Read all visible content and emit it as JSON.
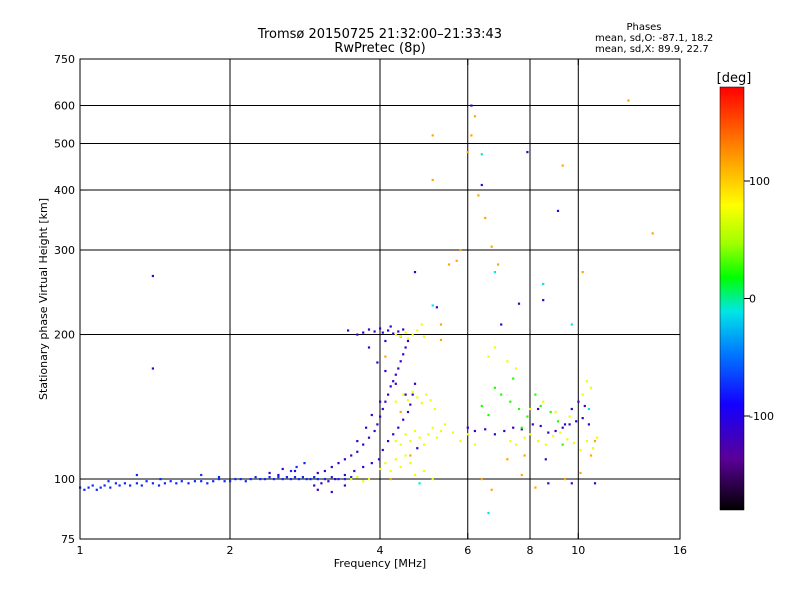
{
  "header": {
    "title": "Tromsø 20150725 21:32:00–21:33:43",
    "subtitle": "RwPretec (8p)"
  },
  "stats": {
    "title": "Phases",
    "line_o": "mean, sd,O: -87.1, 18.2",
    "line_x": "mean, sd,X:  89.9, 22.7"
  },
  "chart_data": {
    "type": "scatter",
    "xlabel": "Frequency [MHz]",
    "ylabel": "Stationary phase Virtual Height [km]",
    "xscale": "log",
    "yscale": "log",
    "xlim": [
      1,
      16
    ],
    "ylim": [
      75,
      750
    ],
    "x_ticks": [
      1,
      2,
      4,
      6,
      8,
      10,
      16
    ],
    "x_tick_labels": [
      "1",
      "2",
      "4",
      "6",
      "8",
      "10",
      "16"
    ],
    "y_ticks": [
      75,
      100,
      200,
      300,
      400,
      500,
      600,
      750
    ],
    "y_tick_labels": [
      "75",
      "100",
      "200",
      "300",
      "400",
      "500",
      "600",
      "750"
    ],
    "grid_x": [
      2,
      4,
      6,
      8,
      10
    ],
    "grid_y": [
      100,
      200,
      300,
      400,
      500,
      600
    ],
    "grid": true,
    "colorbar": {
      "label": "[deg]",
      "range": [
        -180,
        180
      ],
      "ticks": [
        100,
        0,
        -100
      ],
      "tick_labels": [
        "100",
        "0",
        "-100"
      ]
    },
    "series": [
      {
        "phase_deg": -75,
        "points": [
          [
            1.0,
            96
          ],
          [
            1.02,
            95
          ],
          [
            1.04,
            96
          ],
          [
            1.06,
            97
          ],
          [
            1.08,
            95
          ],
          [
            1.1,
            96
          ],
          [
            1.12,
            97
          ],
          [
            1.15,
            96
          ],
          [
            1.18,
            98
          ],
          [
            1.2,
            97
          ],
          [
            1.23,
            98
          ],
          [
            1.26,
            97
          ],
          [
            1.3,
            98
          ],
          [
            1.33,
            97
          ],
          [
            1.36,
            99
          ],
          [
            1.4,
            98
          ],
          [
            1.44,
            97
          ],
          [
            1.48,
            98
          ],
          [
            1.52,
            99
          ],
          [
            1.56,
            98
          ],
          [
            1.6,
            99
          ],
          [
            1.65,
            98
          ],
          [
            1.7,
            99
          ],
          [
            1.75,
            99
          ],
          [
            1.8,
            98
          ],
          [
            1.85,
            99
          ],
          [
            1.9,
            100
          ],
          [
            1.95,
            99
          ],
          [
            2.0,
            99
          ],
          [
            2.05,
            100
          ],
          [
            2.1,
            100
          ],
          [
            2.15,
            99
          ],
          [
            2.2,
            100
          ],
          [
            2.25,
            101
          ],
          [
            2.3,
            100
          ],
          [
            2.35,
            100
          ],
          [
            2.4,
            101
          ],
          [
            2.45,
            100
          ],
          [
            2.5,
            101
          ],
          [
            2.55,
            100
          ],
          [
            2.6,
            101
          ],
          [
            2.65,
            100
          ],
          [
            2.7,
            101
          ],
          [
            2.75,
            100
          ],
          [
            2.8,
            101
          ],
          [
            2.85,
            100
          ],
          [
            2.9,
            100
          ],
          [
            2.95,
            101
          ],
          [
            3.0,
            100
          ],
          [
            3.1,
            100
          ],
          [
            3.2,
            101
          ],
          [
            3.3,
            100
          ],
          [
            3.4,
            100
          ],
          [
            3.5,
            101
          ],
          [
            2.72,
            106
          ],
          [
            2.82,
            108
          ],
          [
            2.65,
            104
          ],
          [
            1.75,
            102
          ],
          [
            1.9,
            101
          ],
          [
            1.3,
            102
          ],
          [
            1.14,
            99
          ],
          [
            1.45,
            100
          ]
        ]
      },
      {
        "phase_deg": -115,
        "points": [
          [
            1.4,
            265
          ],
          [
            1.4,
            170
          ],
          [
            3.45,
            204
          ],
          [
            3.6,
            200
          ],
          [
            3.7,
            202
          ],
          [
            3.8,
            205
          ],
          [
            3.9,
            203
          ],
          [
            4.0,
            206
          ],
          [
            4.05,
            202
          ],
          [
            4.15,
            204
          ],
          [
            4.25,
            201
          ],
          [
            4.35,
            203
          ],
          [
            4.45,
            205
          ],
          [
            3.0,
            103
          ],
          [
            3.1,
            104
          ],
          [
            3.2,
            106
          ],
          [
            3.3,
            108
          ],
          [
            3.4,
            110
          ],
          [
            3.5,
            112
          ],
          [
            3.6,
            114
          ],
          [
            3.7,
            118
          ],
          [
            3.8,
            122
          ],
          [
            3.9,
            126
          ],
          [
            3.95,
            130
          ],
          [
            4.0,
            135
          ],
          [
            4.05,
            140
          ],
          [
            4.1,
            145
          ],
          [
            4.15,
            150
          ],
          [
            4.2,
            156
          ],
          [
            4.25,
            160
          ],
          [
            4.3,
            165
          ],
          [
            4.35,
            170
          ],
          [
            4.4,
            176
          ],
          [
            4.45,
            182
          ],
          [
            4.5,
            188
          ],
          [
            4.55,
            194
          ],
          [
            4.05,
            115
          ],
          [
            4.15,
            120
          ],
          [
            4.25,
            124
          ],
          [
            4.35,
            128
          ],
          [
            4.45,
            133
          ],
          [
            4.55,
            138
          ],
          [
            4.6,
            143
          ],
          [
            4.65,
            150
          ],
          [
            4.7,
            158
          ],
          [
            2.95,
            97
          ],
          [
            3.05,
            98
          ],
          [
            3.15,
            99
          ],
          [
            3.25,
            100
          ],
          [
            3.4,
            102
          ],
          [
            3.55,
            104
          ],
          [
            3.7,
            106
          ],
          [
            3.85,
            108
          ],
          [
            3.98,
            110
          ],
          [
            2.4,
            103
          ],
          [
            2.55,
            105
          ],
          [
            2.7,
            104
          ],
          [
            2.5,
            102
          ],
          [
            3.0,
            95
          ],
          [
            3.2,
            94
          ],
          [
            3.4,
            97
          ],
          [
            6.0,
            128
          ],
          [
            6.2,
            126
          ],
          [
            6.5,
            127
          ],
          [
            6.8,
            124
          ],
          [
            7.1,
            126
          ],
          [
            7.4,
            128
          ],
          [
            7.7,
            127
          ],
          [
            8.1,
            130
          ],
          [
            8.4,
            129
          ],
          [
            8.7,
            125
          ],
          [
            9.0,
            126
          ],
          [
            9.3,
            128
          ],
          [
            9.6,
            130
          ],
          [
            9.9,
            132
          ],
          [
            10.2,
            134
          ],
          [
            10.5,
            130
          ],
          [
            7.6,
            232
          ],
          [
            8.5,
            236
          ],
          [
            6.4,
            410
          ],
          [
            9.1,
            362
          ],
          [
            9.4,
            130
          ],
          [
            9.7,
            140
          ],
          [
            10.0,
            145
          ],
          [
            7.0,
            210
          ],
          [
            8.6,
            110
          ],
          [
            8.7,
            98
          ],
          [
            9.7,
            98
          ],
          [
            10.8,
            98
          ],
          [
            4.4,
            198
          ],
          [
            4.2,
            208
          ],
          [
            4.1,
            194
          ],
          [
            3.8,
            188
          ],
          [
            3.95,
            175
          ],
          [
            4.1,
            168
          ],
          [
            4.3,
            158
          ],
          [
            4.5,
            150
          ],
          [
            8.3,
            140
          ],
          [
            10.3,
            142
          ],
          [
            4.75,
            116
          ],
          [
            3.6,
            120
          ],
          [
            3.75,
            128
          ],
          [
            3.85,
            136
          ],
          [
            4.0,
            145
          ],
          [
            5.2,
            228
          ],
          [
            4.7,
            270
          ],
          [
            6.1,
            600
          ],
          [
            7.9,
            480
          ]
        ]
      },
      {
        "phase_deg": 75,
        "points": [
          [
            4.3,
            200
          ],
          [
            4.4,
            198
          ],
          [
            4.5,
            202
          ],
          [
            4.55,
            196
          ],
          [
            4.65,
            200
          ],
          [
            4.75,
            204
          ],
          [
            4.85,
            210
          ],
          [
            4.9,
            198
          ],
          [
            4.3,
            145
          ],
          [
            4.45,
            150
          ],
          [
            4.55,
            146
          ],
          [
            4.65,
            152
          ],
          [
            4.75,
            148
          ],
          [
            4.85,
            144
          ],
          [
            4.95,
            150
          ],
          [
            5.05,
            146
          ],
          [
            5.15,
            140
          ],
          [
            4.3,
            120
          ],
          [
            4.4,
            118
          ],
          [
            4.5,
            124
          ],
          [
            4.6,
            120
          ],
          [
            4.7,
            126
          ],
          [
            4.8,
            122
          ],
          [
            4.9,
            118
          ],
          [
            5.0,
            124
          ],
          [
            5.1,
            128
          ],
          [
            5.2,
            122
          ],
          [
            5.3,
            126
          ],
          [
            4.0,
            105
          ],
          [
            4.1,
            108
          ],
          [
            4.2,
            104
          ],
          [
            4.3,
            110
          ],
          [
            4.4,
            106
          ],
          [
            4.5,
            112
          ],
          [
            4.6,
            108
          ],
          [
            3.5,
            100
          ],
          [
            3.6,
            101
          ],
          [
            3.7,
            99
          ],
          [
            3.8,
            100
          ],
          [
            5.4,
            130
          ],
          [
            5.6,
            125
          ],
          [
            5.8,
            120
          ],
          [
            6.0,
            124
          ],
          [
            6.2,
            118
          ],
          [
            7.3,
            120
          ],
          [
            7.5,
            118
          ],
          [
            7.8,
            122
          ],
          [
            8.0,
            124
          ],
          [
            8.3,
            120
          ],
          [
            8.6,
            118
          ],
          [
            8.9,
            123
          ],
          [
            9.2,
            125
          ],
          [
            9.5,
            121
          ],
          [
            9.8,
            119
          ],
          [
            10.1,
            115
          ],
          [
            10.4,
            120
          ],
          [
            10.7,
            116
          ],
          [
            10.9,
            122
          ],
          [
            8.0,
            140
          ],
          [
            8.5,
            145
          ],
          [
            9.0,
            138
          ],
          [
            9.6,
            135
          ],
          [
            10.2,
            150
          ],
          [
            10.4,
            160
          ],
          [
            10.6,
            155
          ],
          [
            6.6,
            180
          ],
          [
            6.8,
            188
          ],
          [
            7.2,
            176
          ],
          [
            7.5,
            170
          ],
          [
            4.7,
            102
          ],
          [
            4.9,
            104
          ],
          [
            5.1,
            100
          ]
        ]
      },
      {
        "phase_deg": 115,
        "points": [
          [
            5.1,
            520
          ],
          [
            5.1,
            420
          ],
          [
            5.3,
            195
          ],
          [
            5.5,
            280
          ],
          [
            5.7,
            285
          ],
          [
            6.0,
            480
          ],
          [
            6.2,
            570
          ],
          [
            6.5,
            350
          ],
          [
            6.7,
            305
          ],
          [
            6.9,
            280
          ],
          [
            6.4,
            100
          ],
          [
            6.7,
            95
          ],
          [
            7.2,
            110
          ],
          [
            7.7,
            102
          ],
          [
            8.2,
            96
          ],
          [
            9.4,
            100
          ],
          [
            10.1,
            103
          ],
          [
            10.6,
            112
          ],
          [
            10.8,
            120
          ],
          [
            9.3,
            450
          ],
          [
            10.2,
            270
          ],
          [
            12.6,
            615
          ],
          [
            14.1,
            325
          ],
          [
            4.6,
            112
          ],
          [
            4.4,
            138
          ],
          [
            4.2,
            100
          ],
          [
            5.3,
            210
          ],
          [
            6.3,
            390
          ],
          [
            7.8,
            112
          ],
          [
            4.1,
            180
          ],
          [
            6.1,
            520
          ],
          [
            5.8,
            300
          ]
        ]
      },
      {
        "phase_deg": 25,
        "points": [
          [
            7.0,
            150
          ],
          [
            7.3,
            145
          ],
          [
            7.6,
            140
          ],
          [
            7.9,
            135
          ],
          [
            8.2,
            150
          ],
          [
            8.4,
            142
          ],
          [
            8.8,
            138
          ],
          [
            6.8,
            155
          ],
          [
            7.4,
            162
          ],
          [
            9.1,
            132
          ],
          [
            6.4,
            142
          ],
          [
            6.6,
            136
          ],
          [
            7.7,
            128
          ],
          [
            9.3,
            118
          ]
        ]
      },
      {
        "phase_deg": -10,
        "points": [
          [
            6.8,
            270
          ],
          [
            5.1,
            230
          ],
          [
            6.4,
            475
          ],
          [
            8.5,
            255
          ],
          [
            9.7,
            210
          ],
          [
            10.5,
            140
          ],
          [
            6.6,
            85
          ],
          [
            4.8,
            98
          ]
        ]
      }
    ]
  }
}
